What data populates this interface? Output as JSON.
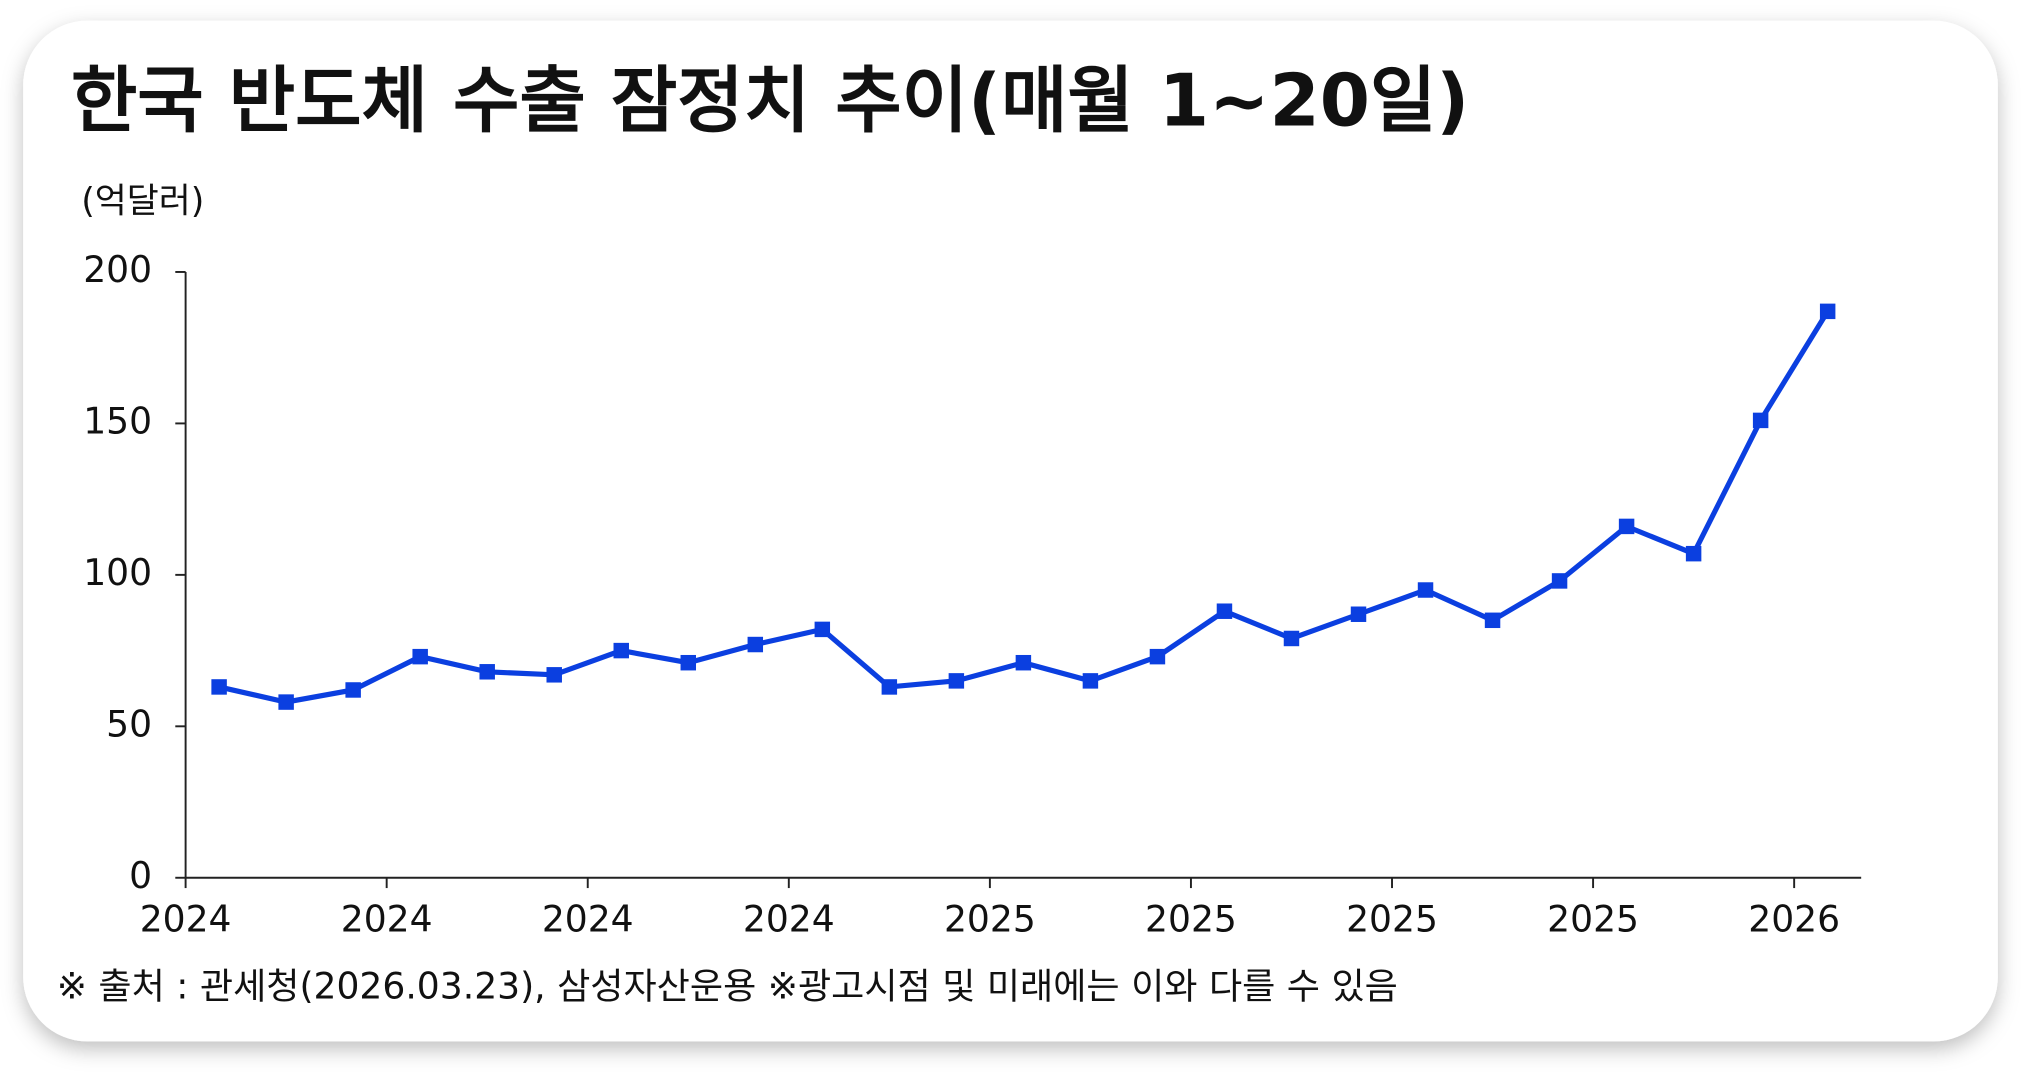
{
  "chart_data": {
    "type": "line",
    "title": "한국 반도체 수출 잠정치 추이(매월 1~20일)",
    "y_axis_label": "(억달러)",
    "source_note": "※ 출처 : 관세청(2026.03.23), 삼성자산운용 ※광고시점 및 미래에는 이와 다를 수 있음",
    "categories": [
      "2024",
      null,
      null,
      "2024",
      null,
      null,
      "2024",
      null,
      null,
      "2024",
      null,
      null,
      "2025",
      null,
      null,
      "2025",
      null,
      null,
      "2025",
      null,
      null,
      "2025",
      null,
      null,
      "2026"
    ],
    "series": [
      {
        "name": "한국 반도체 수출 잠정치",
        "color": "#0b3fe0",
        "values": [
          63,
          58,
          62,
          73,
          68,
          67,
          75,
          71,
          77,
          82,
          63,
          65,
          71,
          65,
          73,
          88,
          79,
          87,
          95,
          85,
          98,
          116,
          107,
          151,
          187
        ]
      }
    ],
    "ylim": [
      0,
      200
    ],
    "yticks": [
      0,
      50,
      100,
      150,
      200
    ],
    "title_color": "#e0208f"
  }
}
